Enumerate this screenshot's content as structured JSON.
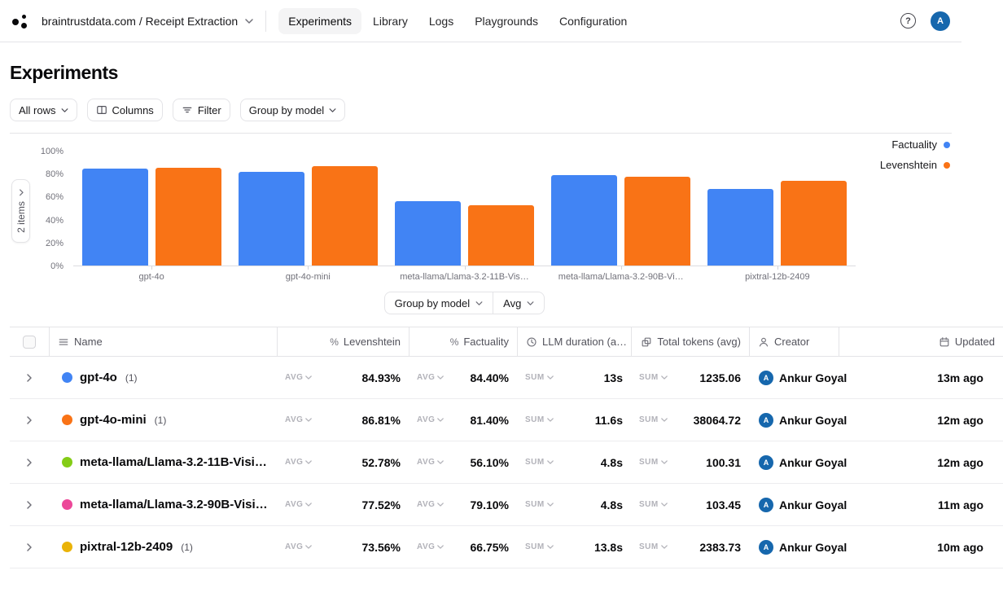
{
  "nav": {
    "breadcrumb": "braintrustdata.com / Receipt Extraction",
    "tabs": [
      "Experiments",
      "Library",
      "Logs",
      "Playgrounds",
      "Configuration"
    ],
    "active_tab": "Experiments",
    "help_label": "?",
    "avatar_initial": "A"
  },
  "page_title": "Experiments",
  "toolbar": {
    "all_rows_label": "All rows",
    "columns_label": "Columns",
    "filter_label": "Filter",
    "group_by_label": "Group by model"
  },
  "chart_panel": {
    "items_button": "2 items",
    "group_by_label": "Group by model",
    "aggregation_label": "Avg"
  },
  "chart_data": {
    "type": "bar",
    "categories": [
      "gpt-4o",
      "gpt-4o-mini",
      "meta-llama/Llama-3.2-11B-Vis…",
      "meta-llama/Llama-3.2-90B-Vi…",
      "pixtral-12b-2409"
    ],
    "series": [
      {
        "name": "Factuality",
        "color": "#4184f4",
        "values": [
          84.4,
          81.4,
          56.1,
          79.1,
          66.75
        ]
      },
      {
        "name": "Levenshtein",
        "color": "#f97316",
        "values": [
          84.93,
          86.81,
          52.78,
          77.52,
          73.56
        ]
      }
    ],
    "title": "",
    "xlabel": "",
    "ylabel": "",
    "ylim": [
      0,
      100
    ],
    "yticks": [
      "100%",
      "80%",
      "60%",
      "40%",
      "20%",
      "0%"
    ],
    "grid": false,
    "legend_position": "top-right"
  },
  "table": {
    "columns": [
      {
        "icon": "menu-icon",
        "label": "Name"
      },
      {
        "icon": "percent-icon",
        "label": "Levenshtein"
      },
      {
        "icon": "percent-icon",
        "label": "Factuality"
      },
      {
        "icon": "clock-icon",
        "label": "LLM duration (a…"
      },
      {
        "icon": "tokens-icon",
        "label": "Total tokens (avg)"
      },
      {
        "icon": "person-icon",
        "label": "Creator"
      },
      {
        "icon": "calendar-icon",
        "label": "Updated"
      }
    ],
    "rows": [
      {
        "dot_color": "#4184f4",
        "name": "gpt-4o",
        "count": "(1)",
        "levenshtein_agg": "AVG",
        "levenshtein": "84.93%",
        "factuality_agg": "AVG",
        "factuality": "84.40%",
        "duration_agg": "SUM",
        "duration": "13s",
        "tokens_agg": "SUM",
        "tokens": "1235.06",
        "creator": "Ankur Goyal",
        "creator_initial": "A",
        "updated": "13m ago"
      },
      {
        "dot_color": "#f97316",
        "name": "gpt-4o-mini",
        "count": "(1)",
        "levenshtein_agg": "AVG",
        "levenshtein": "86.81%",
        "factuality_agg": "AVG",
        "factuality": "81.40%",
        "duration_agg": "SUM",
        "duration": "11.6s",
        "tokens_agg": "SUM",
        "tokens": "38064.72",
        "creator": "Ankur Goyal",
        "creator_initial": "A",
        "updated": "12m ago"
      },
      {
        "dot_color": "#84cc16",
        "name": "meta-llama/Llama-3.2-11B-Visi…",
        "count": "",
        "levenshtein_agg": "AVG",
        "levenshtein": "52.78%",
        "factuality_agg": "AVG",
        "factuality": "56.10%",
        "duration_agg": "SUM",
        "duration": "4.8s",
        "tokens_agg": "SUM",
        "tokens": "100.31",
        "creator": "Ankur Goyal",
        "creator_initial": "A",
        "updated": "12m ago"
      },
      {
        "dot_color": "#ec4899",
        "name": "meta-llama/Llama-3.2-90B-Visi…",
        "count": "",
        "levenshtein_agg": "AVG",
        "levenshtein": "77.52%",
        "factuality_agg": "AVG",
        "factuality": "79.10%",
        "duration_agg": "SUM",
        "duration": "4.8s",
        "tokens_agg": "SUM",
        "tokens": "103.45",
        "creator": "Ankur Goyal",
        "creator_initial": "A",
        "updated": "11m ago"
      },
      {
        "dot_color": "#eab308",
        "name": "pixtral-12b-2409",
        "count": "(1)",
        "levenshtein_agg": "AVG",
        "levenshtein": "73.56%",
        "factuality_agg": "AVG",
        "factuality": "66.75%",
        "duration_agg": "SUM",
        "duration": "13.8s",
        "tokens_agg": "SUM",
        "tokens": "2383.73",
        "creator": "Ankur Goyal",
        "creator_initial": "A",
        "updated": "10m ago"
      }
    ]
  },
  "colors": {
    "factuality_blue": "#4184f4",
    "levenshtein_orange": "#f97316",
    "avatar_blue": "#1667ad"
  }
}
